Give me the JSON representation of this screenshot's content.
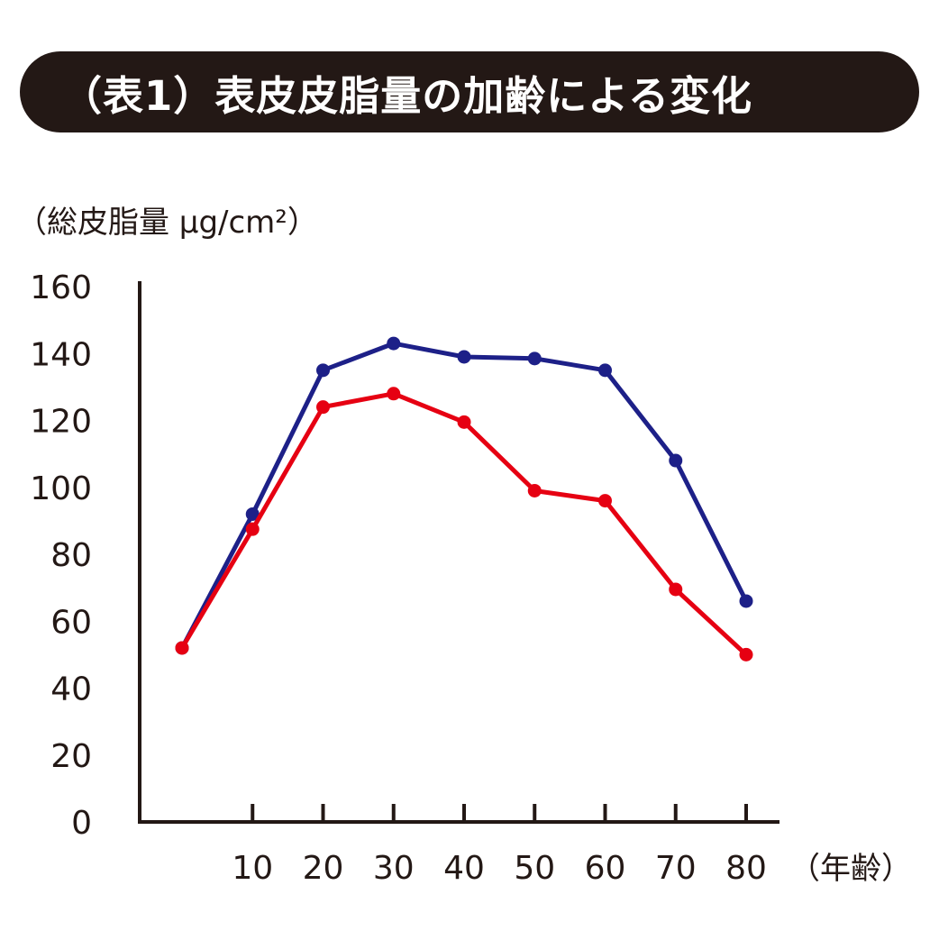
{
  "title": "（表1）表皮皮脂量の加齢による変化",
  "colors": {
    "banner_bg": "#231815",
    "banner_text": "#ffffff",
    "axis": "#231815",
    "series_blue": "#1d2088",
    "series_red": "#e60012"
  },
  "chart_data": {
    "type": "line",
    "ylabel": "（総皮脂量 μg/cm²）",
    "xlabel": "（年齢）",
    "ylim": [
      0,
      160
    ],
    "yticks": [
      "0",
      "20",
      "40",
      "60",
      "80",
      "100",
      "120",
      "140",
      "160"
    ],
    "xticks": [
      "10",
      "20",
      "30",
      "40",
      "50",
      "60",
      "70",
      "80"
    ],
    "x": [
      0,
      10,
      20,
      30,
      40,
      50,
      60,
      70,
      80
    ],
    "grid": false,
    "series": [
      {
        "color": "#1d2088",
        "values": [
          52,
          92,
          135,
          143,
          139,
          138.5,
          135,
          108,
          66
        ]
      },
      {
        "color": "#e60012",
        "values": [
          52,
          87.5,
          124,
          128,
          119.5,
          99,
          96,
          69.5,
          50
        ]
      }
    ]
  }
}
